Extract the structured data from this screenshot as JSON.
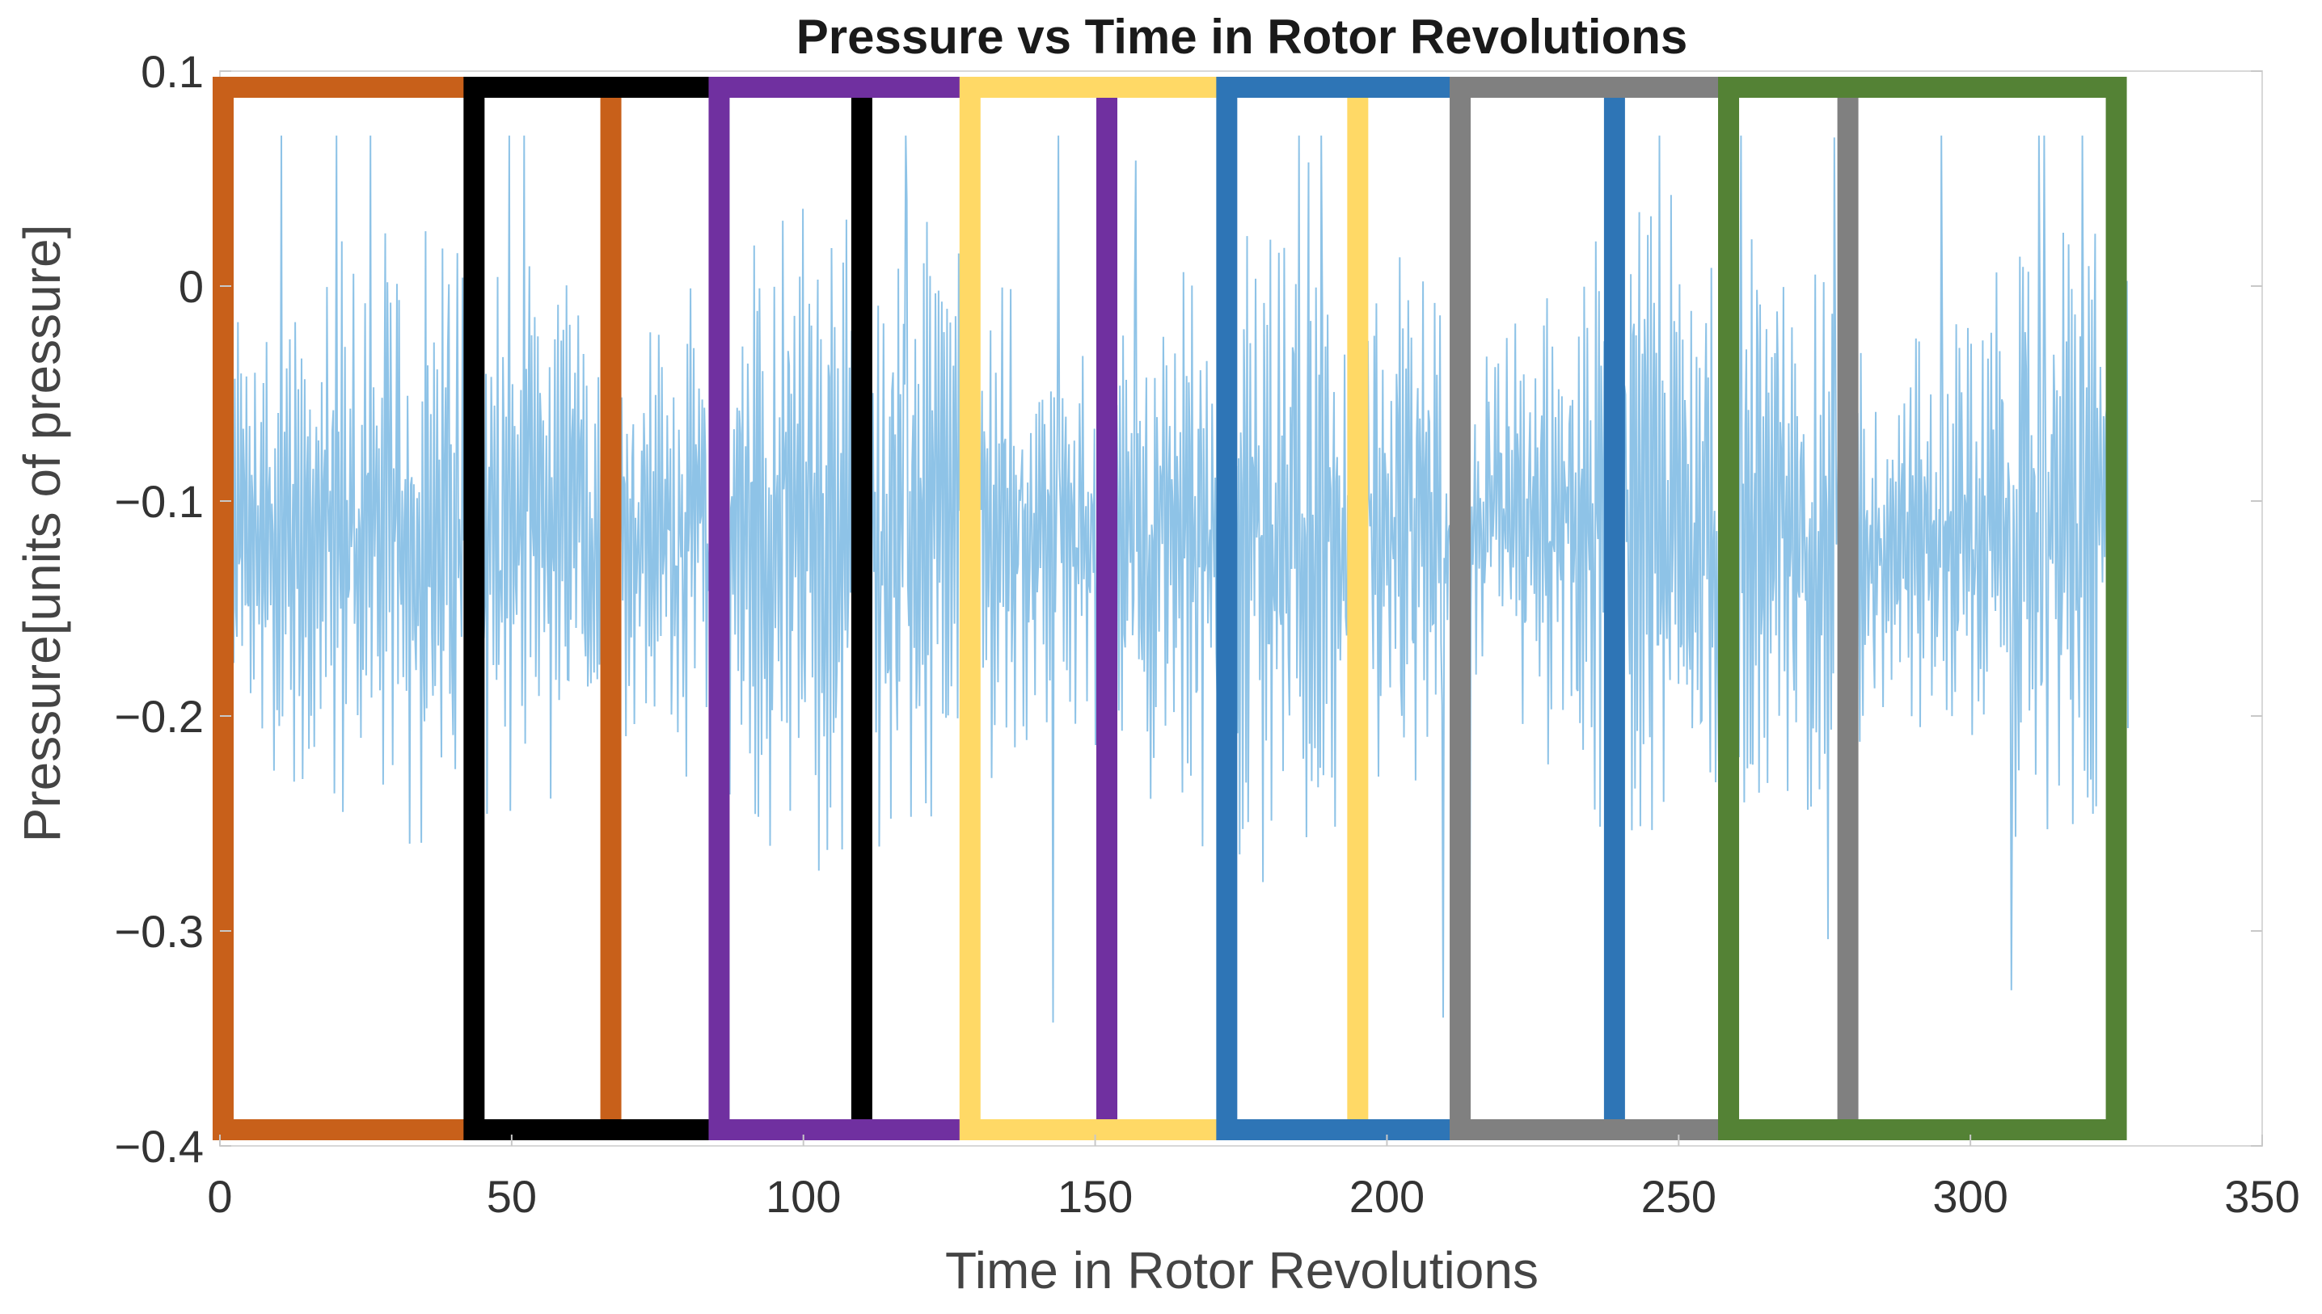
{
  "chart_data": {
    "type": "line",
    "title": "Pressure vs Time in Rotor Revolutions",
    "xlabel": "Time in Rotor Revolutions",
    "ylabel": "Pressure[units of pressure]",
    "xlim": [
      0,
      350
    ],
    "ylim": [
      -0.4,
      0.1
    ],
    "xticks": [
      0,
      50,
      100,
      150,
      200,
      250,
      300,
      350
    ],
    "xtick_labels": [
      "0",
      "50",
      "100",
      "150",
      "200",
      "250",
      "300",
      "350"
    ],
    "yticks": [
      0.1,
      0,
      -0.1,
      -0.2,
      -0.3,
      -0.4
    ],
    "ytick_labels": [
      "0.1",
      "0",
      "−0.1",
      "−0.2",
      "−0.3",
      "−0.4"
    ],
    "grid": false,
    "series": [
      {
        "name": "pressure",
        "color": "#7ab8e3",
        "x_range": [
          0,
          327
        ],
        "mean": -0.115,
        "typical_min": -0.28,
        "typical_max": 0.05,
        "extreme_min": -0.36,
        "extreme_max": 0.07
      }
    ],
    "windows": [
      {
        "color": "#c8601a",
        "x_start": 0,
        "x_end": 67
      },
      {
        "color": "#000000",
        "x_start": 43,
        "x_end": 110
      },
      {
        "color": "#7030a0",
        "x_start": 85,
        "x_end": 152
      },
      {
        "color": "#ffd966",
        "x_start": 128,
        "x_end": 195
      },
      {
        "color": "#2e75b6",
        "x_start": 172,
        "x_end": 239
      },
      {
        "color": "#808080",
        "x_start": 212,
        "x_end": 279
      },
      {
        "color": "#548235",
        "x_start": 258,
        "x_end": 325
      }
    ]
  }
}
